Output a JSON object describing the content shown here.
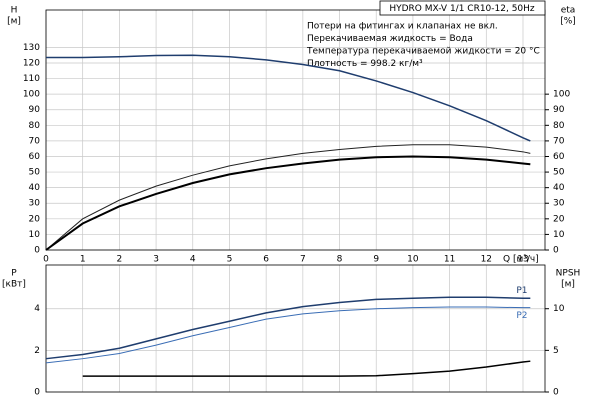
{
  "chart_data": [
    {
      "type": "line",
      "title": "HYDRO MX-V 1/1 CR10-12, 50Hz",
      "notes": [
        "Потери на фитингах и клапанах не вкл.",
        "Перекачиваемая жидкость = Вода",
        "Температура перекачиваемой жидкости = 20 °C",
        "Плотность = 998.2 кг/м³"
      ],
      "ylabel": [
        "H",
        "[м]"
      ],
      "y2label": [
        "eta",
        "[%]"
      ],
      "xlabel": "Q [м³/ч]",
      "x": [
        0,
        1,
        2,
        3,
        4,
        5,
        6,
        7,
        8,
        9,
        10,
        11,
        12,
        13,
        13.2
      ],
      "xlim": [
        0,
        13.6
      ],
      "xticks": [
        0,
        1,
        2,
        3,
        4,
        5,
        6,
        7,
        8,
        9,
        10,
        11,
        12,
        13
      ],
      "ylim": [
        0,
        154
      ],
      "yticks": [
        0,
        10,
        20,
        30,
        40,
        50,
        60,
        70,
        80,
        90,
        100,
        110,
        120,
        130
      ],
      "y2lim": [
        0,
        154
      ],
      "y2ticks": [
        0,
        10,
        20,
        30,
        40,
        50,
        60,
        70,
        80,
        90,
        100
      ],
      "grid": true,
      "series": [
        {
          "color": "#1f3d6e",
          "width": 1.5,
          "values": [
            123.5,
            123.5,
            124,
            124.8,
            125,
            124,
            122,
            119,
            115,
            108.5,
            101,
            92.5,
            83,
            72,
            70
          ]
        },
        {
          "color": "#222222",
          "width": 1,
          "axis": "y2",
          "values": [
            0,
            20,
            32,
            41,
            48,
            54,
            58.5,
            62,
            64.5,
            66.5,
            67.5,
            67.5,
            66,
            63,
            62
          ]
        },
        {
          "color": "#000000",
          "width": 2,
          "axis": "y2",
          "values": [
            0,
            17,
            28,
            36,
            43,
            48.5,
            52.5,
            55.5,
            58,
            59.5,
            60,
            59.5,
            58,
            55.5,
            55
          ]
        }
      ]
    },
    {
      "type": "line",
      "ylabel": [
        "P",
        "[кВт]"
      ],
      "y2label": [
        "NPSH",
        "[м]"
      ],
      "x": [
        0,
        1,
        2,
        3,
        4,
        5,
        6,
        7,
        8,
        9,
        10,
        11,
        12,
        13,
        13.2
      ],
      "xlim": [
        0,
        13.6
      ],
      "xticks": [
        0,
        1,
        2,
        3,
        4,
        5,
        6,
        7,
        8,
        9,
        10,
        11,
        12,
        13
      ],
      "ylim": [
        0,
        6.1
      ],
      "yticks": [
        0,
        2,
        4
      ],
      "y2lim": [
        0,
        15.25
      ],
      "y2ticks": [
        0,
        5,
        10
      ],
      "grid": true,
      "series": [
        {
          "name": "P1",
          "color": "#1f3d6e",
          "width": 1.5,
          "values": [
            1.6,
            1.8,
            2.1,
            2.55,
            3.0,
            3.4,
            3.8,
            4.1,
            4.3,
            4.45,
            4.5,
            4.55,
            4.55,
            4.5,
            4.5
          ]
        },
        {
          "name": "P2",
          "color": "#3a6db5",
          "width": 1,
          "values": [
            1.4,
            1.6,
            1.85,
            2.25,
            2.7,
            3.1,
            3.5,
            3.75,
            3.9,
            4.0,
            4.05,
            4.08,
            4.08,
            4.05,
            4.05
          ]
        },
        {
          "color": "#000000",
          "width": 1.5,
          "axis": "y2",
          "values": [
            null,
            1.9,
            1.9,
            1.9,
            1.9,
            1.9,
            1.9,
            1.9,
            1.9,
            1.95,
            2.2,
            2.5,
            3.0,
            3.6,
            3.7
          ]
        }
      ]
    }
  ]
}
